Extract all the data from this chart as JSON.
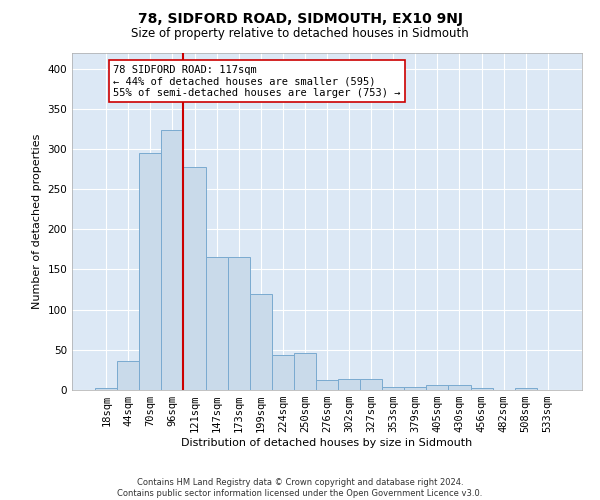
{
  "title1": "78, SIDFORD ROAD, SIDMOUTH, EX10 9NJ",
  "title2": "Size of property relative to detached houses in Sidmouth",
  "xlabel": "Distribution of detached houses by size in Sidmouth",
  "ylabel": "Number of detached properties",
  "footnote": "Contains HM Land Registry data © Crown copyright and database right 2024.\nContains public sector information licensed under the Open Government Licence v3.0.",
  "bar_labels": [
    "18sqm",
    "44sqm",
    "70sqm",
    "96sqm",
    "121sqm",
    "147sqm",
    "173sqm",
    "199sqm",
    "224sqm",
    "250sqm",
    "276sqm",
    "302sqm",
    "327sqm",
    "353sqm",
    "379sqm",
    "405sqm",
    "430sqm",
    "456sqm",
    "482sqm",
    "508sqm",
    "533sqm"
  ],
  "bar_values": [
    2,
    36,
    295,
    323,
    278,
    165,
    165,
    120,
    44,
    46,
    13,
    14,
    14,
    4,
    4,
    6,
    6,
    2,
    0,
    2,
    0
  ],
  "bar_color": "#c9daea",
  "bar_edge_color": "#7aaad0",
  "vline_x_index": 4,
  "vline_color": "#cc0000",
  "annotation_text": "78 SIDFORD ROAD: 117sqm\n← 44% of detached houses are smaller (595)\n55% of semi-detached houses are larger (753) →",
  "annotation_box_color": "#ffffff",
  "annotation_box_edge": "#cc0000",
  "ylim": [
    0,
    420
  ],
  "yticks": [
    0,
    50,
    100,
    150,
    200,
    250,
    300,
    350,
    400
  ],
  "plot_bg_color": "#dce8f5",
  "title1_fontsize": 10,
  "title2_fontsize": 8.5,
  "xlabel_fontsize": 8,
  "ylabel_fontsize": 8,
  "tick_fontsize": 7.5,
  "annot_fontsize": 7.5
}
